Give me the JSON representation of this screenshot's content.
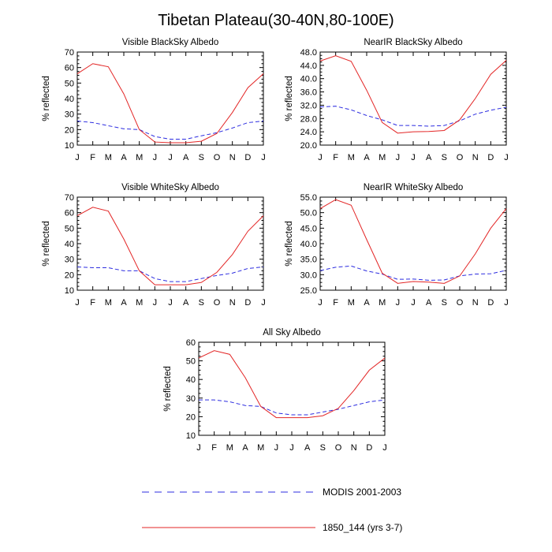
{
  "figure_title": "Tibetan Plateau(30-40N,80-100E)",
  "colors": {
    "modis": "#2d2de0",
    "model": "#e32626",
    "axis": "#000000"
  },
  "legend": [
    {
      "series": "modis",
      "label": "MODIS 2001-2003",
      "style": "dashed"
    },
    {
      "series": "model",
      "label": "1850_144 (yrs 3-7)",
      "style": "solid"
    }
  ],
  "chart_data": [
    {
      "id": "vis-bs",
      "type": "line",
      "title": "Visible BlackSky Albedo",
      "ylabel": "% reflected",
      "xlabel": "",
      "categories": [
        "J",
        "F",
        "M",
        "A",
        "M",
        "J",
        "J",
        "A",
        "S",
        "O",
        "N",
        "D",
        "J"
      ],
      "ylim": [
        10,
        70
      ],
      "yticks": [
        "10",
        "20",
        "30",
        "40",
        "50",
        "60",
        "70"
      ],
      "grid": false,
      "series": [
        {
          "name": "MODIS 2001-2003",
          "key": "modis",
          "values": [
            25.5,
            24.5,
            22.5,
            20.5,
            20.0,
            15.5,
            13.8,
            13.8,
            16.0,
            18.0,
            21.0,
            24.5,
            25.5
          ]
        },
        {
          "name": "1850_144 (yrs 3-7)",
          "key": "model",
          "values": [
            56.0,
            62.5,
            60.5,
            43.0,
            20.0,
            12.0,
            11.5,
            11.5,
            12.5,
            17.5,
            31.0,
            47.0,
            56.0
          ]
        }
      ]
    },
    {
      "id": "nir-bs",
      "type": "line",
      "title": "NearIR BlackSky Albedo",
      "ylabel": "% reflected",
      "xlabel": "",
      "categories": [
        "J",
        "F",
        "M",
        "A",
        "M",
        "J",
        "J",
        "A",
        "S",
        "O",
        "N",
        "D",
        "J"
      ],
      "ylim": [
        20,
        48
      ],
      "yticks": [
        "20.0",
        "24.0",
        "28.0",
        "32.0",
        "36.0",
        "40.0",
        "44.0",
        "48.0"
      ],
      "grid": false,
      "series": [
        {
          "name": "MODIS 2001-2003",
          "key": "modis",
          "values": [
            31.5,
            31.7,
            30.6,
            28.9,
            27.6,
            25.9,
            25.9,
            25.7,
            25.9,
            27.3,
            29.3,
            30.5,
            31.4
          ]
        },
        {
          "name": "1850_144 (yrs 3-7)",
          "key": "model",
          "values": [
            45.3,
            46.9,
            45.2,
            36.5,
            26.8,
            23.6,
            24.0,
            24.1,
            24.4,
            27.6,
            34.0,
            41.3,
            45.5
          ]
        }
      ]
    },
    {
      "id": "vis-ws",
      "type": "line",
      "title": "Visible WhiteSky Albedo",
      "ylabel": "% reflected",
      "xlabel": "",
      "categories": [
        "J",
        "F",
        "M",
        "A",
        "M",
        "J",
        "J",
        "A",
        "S",
        "O",
        "N",
        "D",
        "J"
      ],
      "ylim": [
        10,
        70
      ],
      "yticks": [
        "10",
        "20",
        "30",
        "40",
        "50",
        "60",
        "70"
      ],
      "grid": false,
      "series": [
        {
          "name": "MODIS 2001-2003",
          "key": "modis",
          "values": [
            25.0,
            24.5,
            24.5,
            22.5,
            22.5,
            17.5,
            15.5,
            15.5,
            17.5,
            19.5,
            21.0,
            24.0,
            25.0
          ]
        },
        {
          "name": "1850_144 (yrs 3-7)",
          "key": "model",
          "values": [
            58.0,
            63.5,
            61.0,
            43.0,
            22.5,
            13.5,
            13.5,
            13.5,
            15.0,
            21.5,
            33.0,
            48.0,
            58.0
          ]
        }
      ]
    },
    {
      "id": "nir-ws",
      "type": "line",
      "title": "NearIR WhiteSky Albedo",
      "ylabel": "% reflected",
      "xlabel": "",
      "categories": [
        "J",
        "F",
        "M",
        "A",
        "M",
        "J",
        "J",
        "A",
        "S",
        "O",
        "N",
        "D",
        "J"
      ],
      "ylim": [
        25,
        55
      ],
      "yticks": [
        "25.0",
        "30.0",
        "35.0",
        "40.0",
        "45.0",
        "50.0",
        "55.0"
      ],
      "grid": false,
      "series": [
        {
          "name": "MODIS 2001-2003",
          "key": "modis",
          "values": [
            31.3,
            32.4,
            32.8,
            31.2,
            30.2,
            28.5,
            28.6,
            28.2,
            28.3,
            29.6,
            30.2,
            30.3,
            31.4
          ]
        },
        {
          "name": "1850_144 (yrs 3-7)",
          "key": "model",
          "values": [
            51.3,
            54.2,
            52.4,
            41.3,
            30.5,
            27.2,
            27.8,
            27.6,
            27.2,
            29.6,
            36.7,
            45.0,
            51.3
          ]
        }
      ]
    },
    {
      "id": "all-sky",
      "type": "line",
      "title": "All Sky Albedo",
      "ylabel": "% reflected",
      "xlabel": "",
      "categories": [
        "J",
        "F",
        "M",
        "A",
        "M",
        "J",
        "J",
        "A",
        "S",
        "O",
        "N",
        "D",
        "J"
      ],
      "ylim": [
        10,
        60
      ],
      "yticks": [
        "10",
        "20",
        "30",
        "40",
        "50",
        "60"
      ],
      "grid": false,
      "series": [
        {
          "name": "MODIS 2001-2003",
          "key": "modis",
          "values": [
            29.0,
            29.0,
            28.0,
            26.0,
            25.5,
            22.0,
            21.0,
            21.0,
            22.5,
            24.0,
            26.0,
            28.0,
            29.0
          ]
        },
        {
          "name": "1850_144 (yrs 3-7)",
          "key": "model",
          "values": [
            51.5,
            55.5,
            53.5,
            41.0,
            25.5,
            19.5,
            19.5,
            19.5,
            20.5,
            24.5,
            34.0,
            45.0,
            51.5
          ]
        }
      ]
    }
  ]
}
